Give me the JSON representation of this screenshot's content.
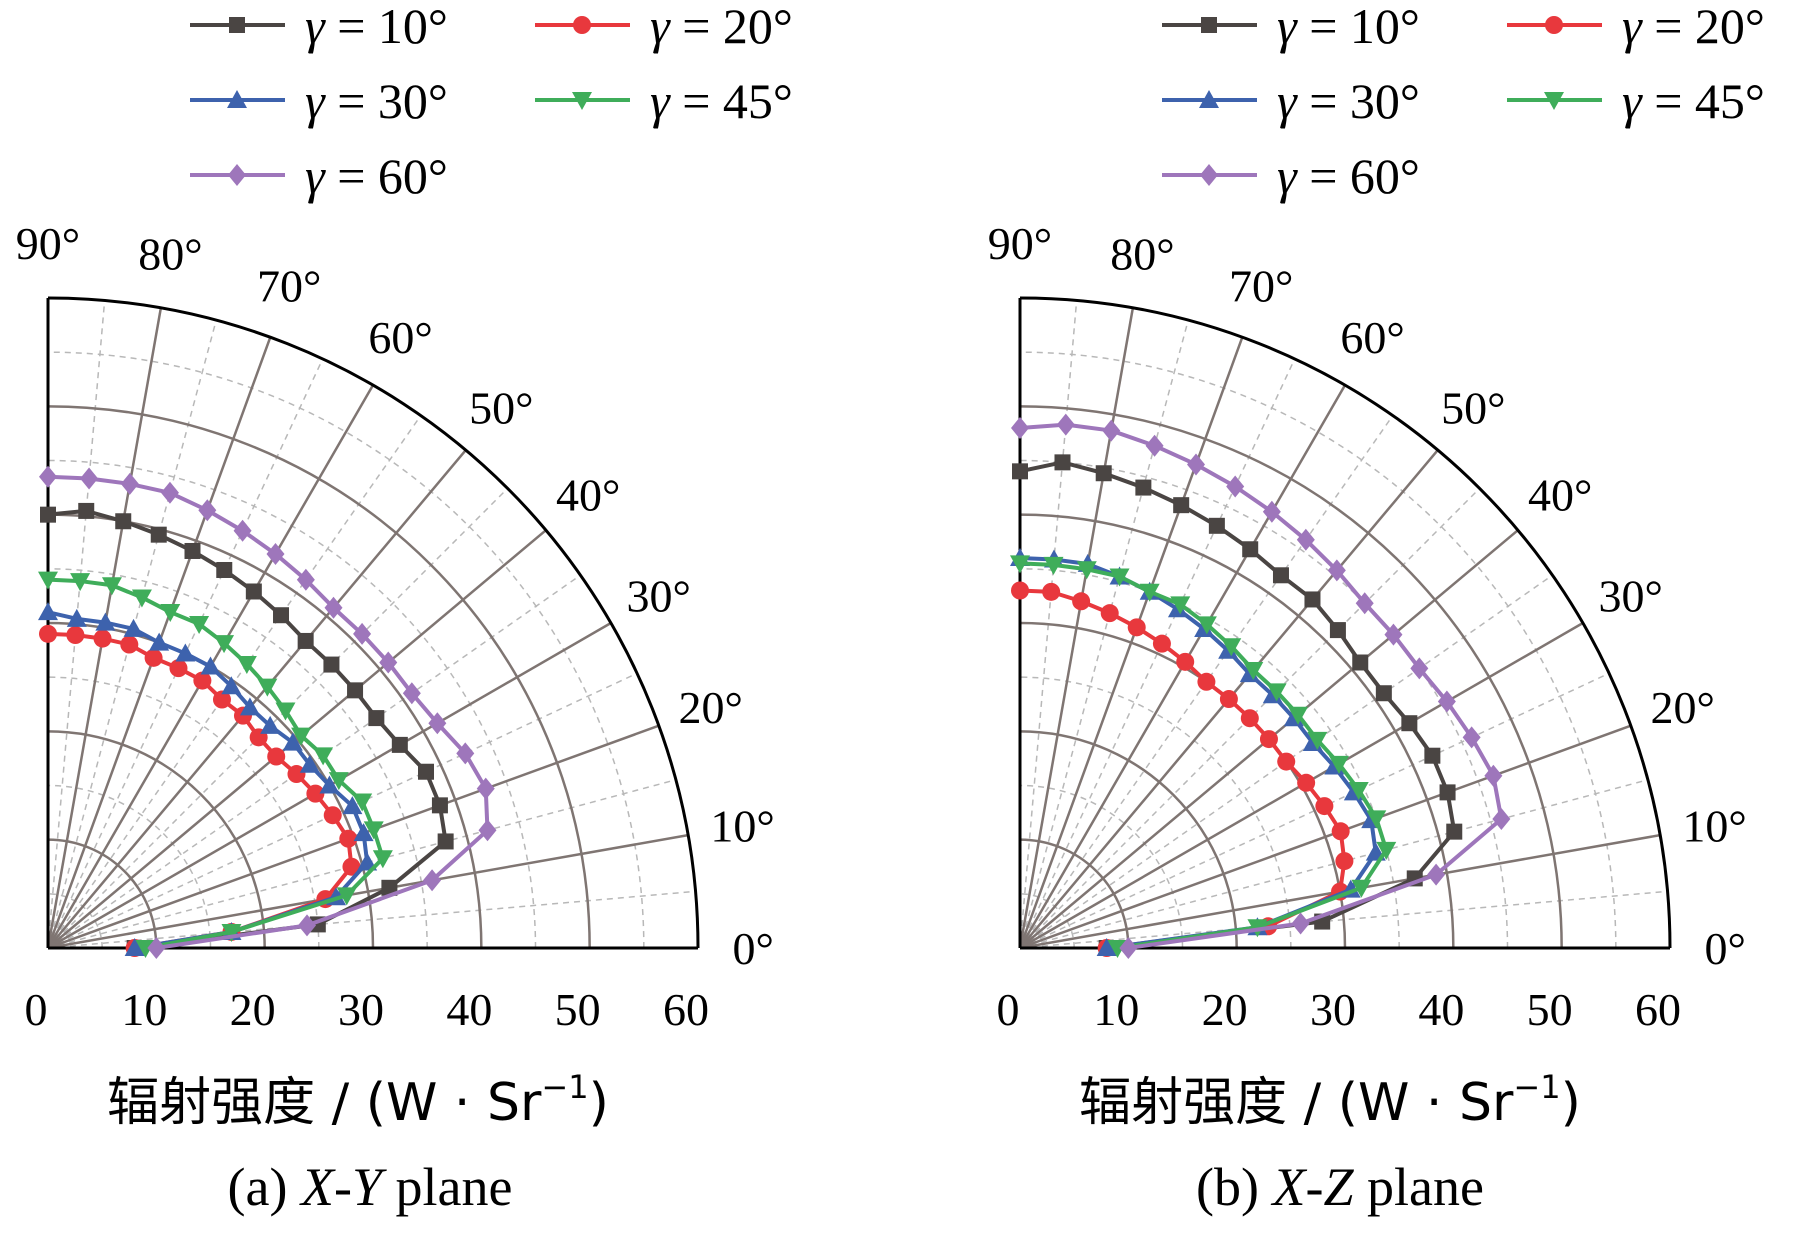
{
  "chart_data": [
    {
      "type": "polar-line",
      "caption_prefix": "(a) ",
      "caption_italic": "X-Y",
      "caption_suffix": " plane",
      "radial_label": "辐射强度 / (W · Sr",
      "radial_label_sup": "−1",
      "radial_label_close": ")",
      "radial_ticks": [
        "0",
        "10",
        "20",
        "30",
        "40",
        "50",
        "60"
      ],
      "rlim": [
        0,
        60
      ],
      "angle_ticks": [
        "0°",
        "10°",
        "20°",
        "30°",
        "40°",
        "50°",
        "60°",
        "70°",
        "80°",
        "90°"
      ],
      "grid": true,
      "legend_position": "top",
      "angles": [
        0,
        5,
        10,
        15,
        20,
        25,
        30,
        35,
        40,
        45,
        50,
        55,
        60,
        65,
        70,
        75,
        80,
        85,
        90
      ],
      "series": [
        {
          "name": "γ = 10°",
          "color": "#4a4543",
          "marker": "square",
          "values": [
            8,
            25,
            32,
            38,
            38.5,
            38.5,
            37.5,
            37,
            37,
            37,
            37,
            37.5,
            38,
            38.5,
            39,
            39.5,
            40,
            40.5,
            40
          ]
        },
        {
          "name": "γ = 20°",
          "color": "#e8383d",
          "marker": "circle",
          "values": [
            8,
            17,
            26,
            29,
            29.5,
            29,
            28.5,
            28,
            27.5,
            27.5,
            28,
            28,
            28.5,
            28.5,
            28.5,
            29,
            29,
            29,
            29
          ]
        },
        {
          "name": "γ = 30°",
          "color": "#3d62ad",
          "marker": "triangle-up",
          "values": [
            8,
            17,
            27,
            30.5,
            31,
            31,
            30,
            29.5,
            29.5,
            29,
            29,
            29.5,
            30,
            30,
            30,
            30.5,
            30.5,
            30.5,
            31
          ]
        },
        {
          "name": "γ = 45°",
          "color": "#3fad5a",
          "marker": "triangle-down",
          "values": [
            9,
            17,
            28,
            32,
            32,
            32,
            31,
            31,
            30.5,
            31,
            31.5,
            32,
            32.5,
            33,
            33,
            33.5,
            34,
            34,
            34
          ]
        },
        {
          "name": "γ = 60°",
          "color": "#9e76bb",
          "marker": "diamond",
          "values": [
            10,
            24,
            36,
            42,
            43,
            42.5,
            41.5,
            41,
            41,
            41,
            41,
            41.5,
            42,
            42.5,
            43,
            43.5,
            43.5,
            43.5,
            43.5
          ]
        }
      ]
    },
    {
      "type": "polar-line",
      "caption_prefix": "(b) ",
      "caption_italic": "X-Z",
      "caption_suffix": " plane",
      "radial_label": "辐射强度 / (W · Sr",
      "radial_label_sup": "−1",
      "radial_label_close": ")",
      "radial_ticks": [
        "0",
        "10",
        "20",
        "30",
        "40",
        "50",
        "60"
      ],
      "rlim": [
        0,
        60
      ],
      "angle_ticks": [
        "0°",
        "10°",
        "20°",
        "30°",
        "40°",
        "50°",
        "60°",
        "70°",
        "80°",
        "90°"
      ],
      "grid": true,
      "legend_position": "top",
      "angles": [
        0,
        5,
        10,
        15,
        20,
        25,
        30,
        35,
        40,
        45,
        50,
        55,
        60,
        65,
        70,
        75,
        80,
        85,
        90
      ],
      "series": [
        {
          "name": "γ = 10°",
          "color": "#4a4543",
          "marker": "square",
          "values": [
            8,
            28,
            37,
            41.5,
            42,
            42,
            41.5,
            41,
            41,
            41.5,
            42,
            42,
            42.5,
            43,
            43.5,
            44,
            44.5,
            45,
            44
          ]
        },
        {
          "name": "γ = 20°",
          "color": "#e8383d",
          "marker": "circle",
          "values": [
            8,
            23,
            30,
            31,
            31.5,
            31,
            30.5,
            30,
            30,
            30,
            30,
            30,
            30.5,
            31,
            31.5,
            32,
            32.5,
            33,
            33
          ]
        },
        {
          "name": "γ = 30°",
          "color": "#3d62ad",
          "marker": "triangle-up",
          "values": [
            8,
            22,
            31,
            34,
            34.5,
            34,
            33.5,
            33,
            33,
            33,
            33,
            33.5,
            34,
            34.5,
            35,
            35.5,
            36,
            36,
            36
          ]
        },
        {
          "name": "γ = 45°",
          "color": "#3fad5a",
          "marker": "triangle-down",
          "values": [
            9,
            22,
            32,
            35,
            35,
            34.5,
            34,
            33.5,
            33.5,
            33.5,
            33.5,
            34,
            34.5,
            35,
            35,
            35.5,
            35.5,
            35.5,
            35.5
          ]
        },
        {
          "name": "γ = 60°",
          "color": "#9e76bb",
          "marker": "diamond",
          "values": [
            10,
            26,
            39,
            46,
            46.5,
            46,
            45.5,
            45,
            45,
            45,
            45.5,
            46,
            46.5,
            47,
            47.5,
            48,
            48.5,
            48.5,
            48
          ]
        }
      ]
    }
  ]
}
